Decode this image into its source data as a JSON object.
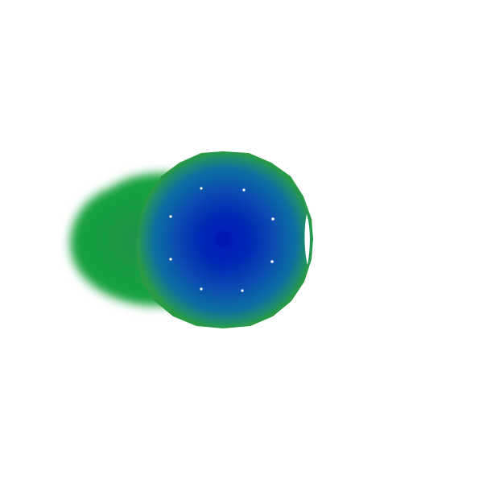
{
  "scene": {
    "background_color": "#ffffff",
    "shapes": [
      {
        "name": "green-blurred-blob",
        "colors": [
          "#1aa33a",
          "#189f3f",
          "#1f8f4c"
        ]
      },
      {
        "name": "blue-radial-sphere",
        "colors": [
          "#0019b8",
          "#0028b5",
          "#0b6fa1",
          "#2a9a45"
        ]
      },
      {
        "name": "white-dots-ring",
        "color": "#ffffff",
        "count": 8
      }
    ]
  }
}
